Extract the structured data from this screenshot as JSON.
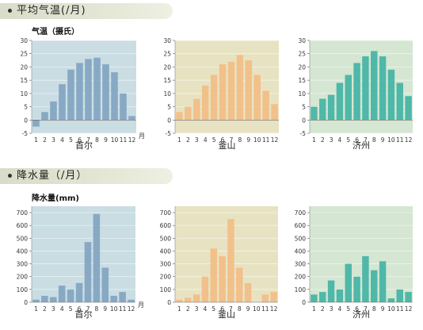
{
  "sections": {
    "temperature": {
      "title": "平均气温(/月)",
      "ylabel": "气温（摄氏）"
    },
    "precipitation": {
      "title": "降水量（/月）",
      "ylabel": "降水量(mm)"
    }
  },
  "month_unit": "月",
  "colors": {
    "seoul_bg": "#c9dde3",
    "seoul_bar": "#88a9c4",
    "busan_bg": "#e7e3c2",
    "busan_bar": "#f2c08a",
    "jinan_bg": "#d5e6d2",
    "jinan_bar": "#4fb8a8"
  },
  "chart_data": [
    {
      "type": "bar",
      "city": "首尔",
      "categories": [
        "1",
        "2",
        "3",
        "4",
        "5",
        "6",
        "7",
        "8",
        "9",
        "10",
        "11",
        "12"
      ],
      "values": [
        -2.5,
        3,
        7,
        13.5,
        19,
        21.5,
        23,
        23.5,
        21,
        18,
        10,
        1.5
      ],
      "ylim": [
        -5,
        30
      ],
      "yticks": [
        -5,
        0,
        5,
        10,
        15,
        20,
        25,
        30
      ],
      "xlabel": "月"
    },
    {
      "type": "bar",
      "city": "釜山",
      "categories": [
        "1",
        "2",
        "3",
        "4",
        "5",
        "6",
        "7",
        "8",
        "9",
        "10",
        "11",
        "12"
      ],
      "values": [
        3,
        5,
        8,
        13,
        17,
        21,
        22,
        24.5,
        22.5,
        17,
        11,
        6
      ],
      "ylim": [
        -5,
        30
      ],
      "yticks": [
        -5,
        0,
        5,
        10,
        15,
        20,
        25,
        30
      ]
    },
    {
      "type": "bar",
      "city": "济州",
      "categories": [
        "1",
        "2",
        "3",
        "4",
        "5",
        "6",
        "7",
        "8",
        "9",
        "10",
        "11",
        "12"
      ],
      "values": [
        5,
        8,
        9.5,
        14,
        17,
        21.5,
        24,
        26,
        24,
        19,
        14,
        9
      ],
      "ylim": [
        -5,
        30
      ],
      "yticks": [
        -5,
        0,
        5,
        10,
        15,
        20,
        25,
        30
      ]
    },
    {
      "type": "bar",
      "city": "首尔",
      "categories": [
        "1",
        "2",
        "3",
        "4",
        "5",
        "6",
        "7",
        "8",
        "9",
        "10",
        "11",
        "12"
      ],
      "values": [
        20,
        50,
        40,
        130,
        100,
        150,
        470,
        690,
        270,
        50,
        80,
        20
      ],
      "ylim": [
        0,
        750
      ],
      "yticks": [
        0,
        100,
        200,
        300,
        400,
        500,
        600,
        700
      ],
      "xlabel": "月"
    },
    {
      "type": "bar",
      "city": "釜山",
      "categories": [
        "1",
        "2",
        "3",
        "4",
        "5",
        "6",
        "7",
        "8",
        "9",
        "10",
        "11",
        "12"
      ],
      "values": [
        20,
        35,
        60,
        200,
        420,
        360,
        650,
        270,
        150,
        0,
        60,
        80
      ],
      "ylim": [
        0,
        750
      ],
      "yticks": [
        0,
        100,
        200,
        300,
        400,
        500,
        600,
        700
      ]
    },
    {
      "type": "bar",
      "city": "济州",
      "categories": [
        "1",
        "2",
        "3",
        "4",
        "5",
        "6",
        "7",
        "8",
        "9",
        "10",
        "11",
        "12"
      ],
      "values": [
        60,
        80,
        170,
        100,
        300,
        200,
        360,
        250,
        320,
        30,
        100,
        80
      ],
      "ylim": [
        0,
        750
      ],
      "yticks": [
        0,
        100,
        200,
        300,
        400,
        500,
        600,
        700
      ]
    }
  ]
}
